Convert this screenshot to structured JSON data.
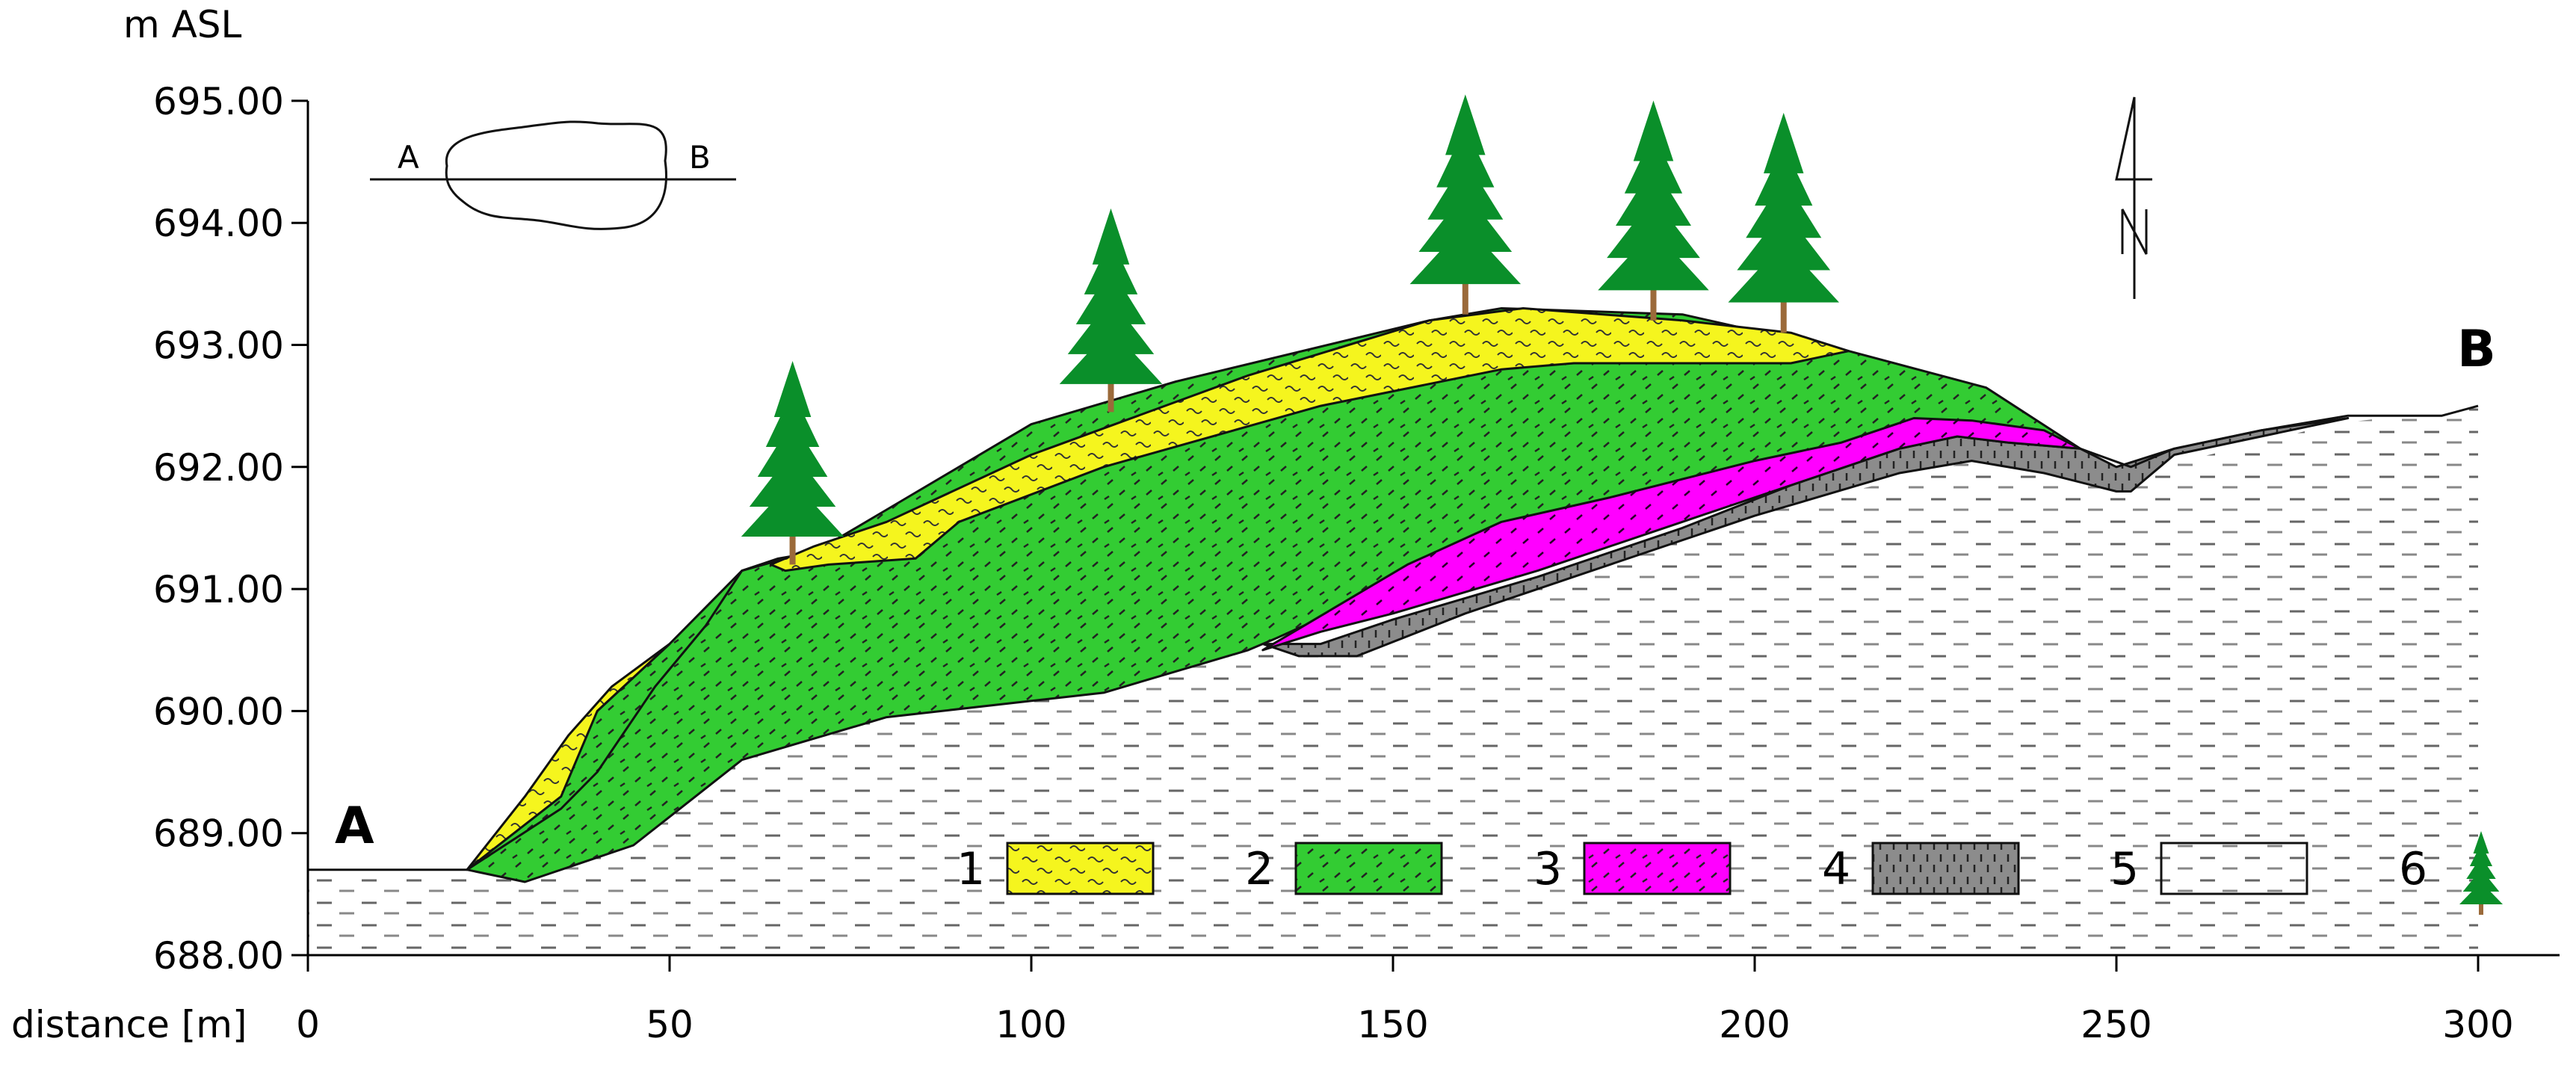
{
  "axes": {
    "y_unit": "m ASL",
    "x_title": "distance [m]",
    "y_ticks": [
      "695.00",
      "694.00",
      "693.00",
      "692.00",
      "691.00",
      "690.00",
      "689.00",
      "688.00"
    ],
    "x_ticks": [
      "0",
      "50",
      "100",
      "150",
      "200",
      "250",
      "300"
    ],
    "x_range": [
      0,
      300
    ],
    "y_range": [
      688,
      695
    ]
  },
  "profile": {
    "start_label": "A",
    "end_label": "B"
  },
  "inset": {
    "left_label": "A",
    "right_label": "B"
  },
  "north_arrow": {
    "letter": "N",
    "icon": "north-arrow-icon"
  },
  "legend": {
    "items": [
      {
        "number": "1",
        "color": "#f5f51e",
        "pattern": "wavy"
      },
      {
        "number": "2",
        "color": "#33cc33",
        "pattern": "dashes"
      },
      {
        "number": "3",
        "color": "#ff00ff",
        "pattern": "dashes"
      },
      {
        "number": "4",
        "color": "#8c8c8c",
        "pattern": "vertical-dashes"
      },
      {
        "number": "5",
        "color": "#ffffff",
        "pattern": "horizontal-dashes"
      },
      {
        "number": "6",
        "color": "#0a8f2a",
        "pattern": "tree-icon"
      }
    ]
  },
  "layers": {
    "layer1_color": "#f5f51e",
    "layer2_color": "#33cc33",
    "layer3_color": "#ff00ff",
    "layer4_color": "#8c8c8c",
    "bedrock_color": "#ffffff",
    "tree_color": "#0a8f2a",
    "trunk_color": "#9b6a3a"
  }
}
